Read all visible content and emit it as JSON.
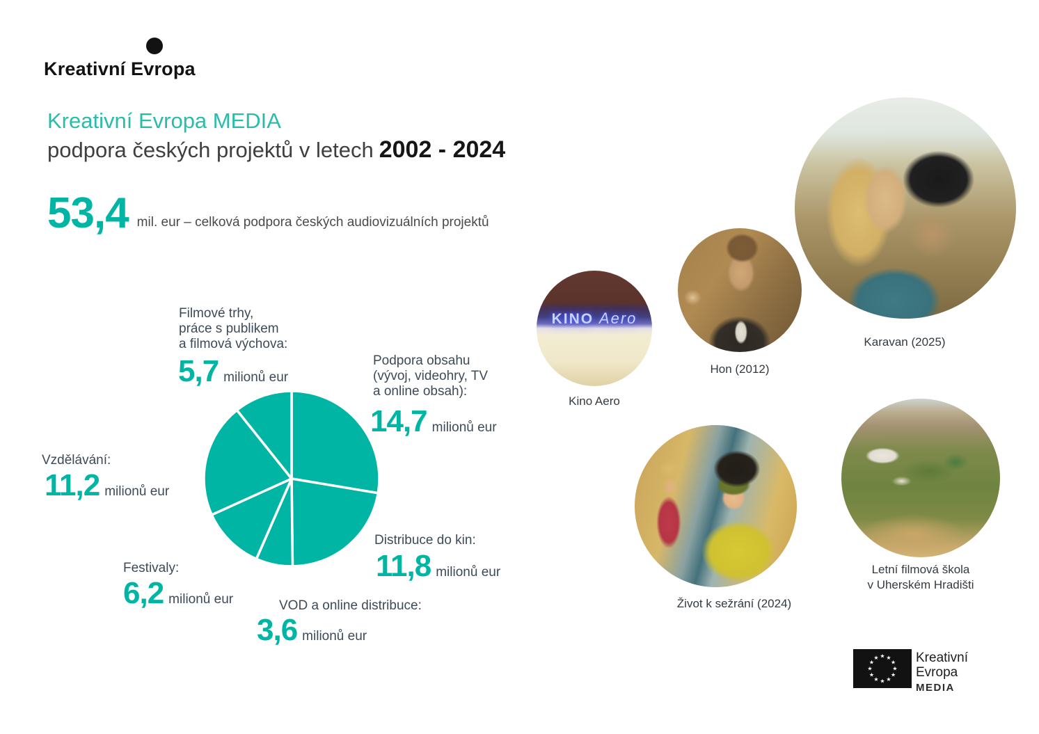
{
  "brand": {
    "name": "Kreativní Evropa"
  },
  "title": {
    "line1": "Kreativní Evropa MEDIA",
    "line2": "podpora českých projektů v letech",
    "years": "2002 - 2024"
  },
  "total": {
    "value": "53,4",
    "caption": "mil. eur – celková podpora českých audiovizuálních projektů"
  },
  "chart_data": {
    "type": "pie",
    "title": "",
    "unit": "milionů eur",
    "total_mil_eur": 53.4,
    "slices": [
      {
        "label": "Podpora obsahu (vývoj, videohry, TV a online obsah)",
        "value": 14.7
      },
      {
        "label": "Distribuce do kin",
        "value": 11.8
      },
      {
        "label": "VOD a online distribuce",
        "value": 3.6
      },
      {
        "label": "Festivaly",
        "value": 6.2
      },
      {
        "label": "Vzdělávání",
        "value": 11.2
      },
      {
        "label": "Filmové trhy, práce s publikem a filmová výchova",
        "value": 5.7
      }
    ],
    "start_angle": "top",
    "direction": "clockwise",
    "slice_color": "#00b5a4",
    "gap_color": "#ffffff",
    "legend_position": "labels-around-pie"
  },
  "pie_labels": {
    "filmove": {
      "line1": "Filmové trhy,",
      "line2": "práce s publikem",
      "line3": "a filmová výchova:",
      "value": "5,7",
      "unit": "milionů eur"
    },
    "podpora": {
      "line1": "Podpora obsahu",
      "line2": "(vývoj, videohry, TV",
      "line3": "a online obsah):",
      "value": "14,7",
      "unit": "milionů eur"
    },
    "vzdelavani": {
      "line1": "Vzdělávání:",
      "value": "11,2",
      "unit": "milionů eur"
    },
    "festivaly": {
      "line1": "Festivaly:",
      "value": "6,2",
      "unit": "milionů eur"
    },
    "distribuce": {
      "line1": "Distribuce do kin:",
      "value": "11,8",
      "unit": "milionů eur"
    },
    "vod": {
      "line1": "VOD a online distribuce:",
      "value": "3,6",
      "unit": "milionů eur"
    }
  },
  "photos": {
    "kino_aero": {
      "caption": "Kino Aero",
      "neon1": "KINO",
      "neon2": "Aero"
    },
    "hon": {
      "caption": "Hon (2012)"
    },
    "karavan": {
      "caption": "Karavan (2025)"
    },
    "zivot": {
      "caption": "Život k sežrání (2024)"
    },
    "letni": {
      "caption_line1": "Letní filmová škola",
      "caption_line2": "v Uherském Hradišti"
    }
  },
  "footer_logo": {
    "line1": "Kreativní",
    "line2": "Evropa",
    "line3": "MEDIA"
  },
  "colors": {
    "accent": "#00b5a4",
    "title_teal": "#2abcab",
    "label_slate": "#3e4a57",
    "logo_black": "#121212"
  }
}
